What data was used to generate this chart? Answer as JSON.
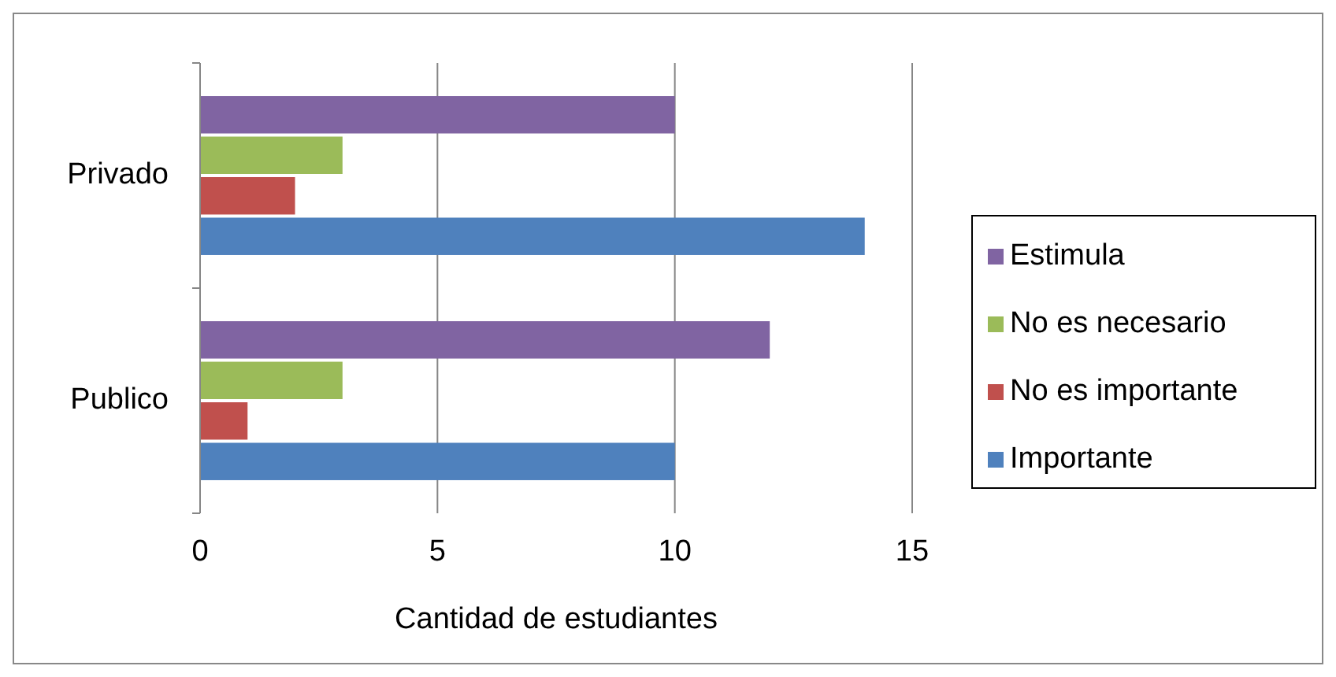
{
  "chart_data": {
    "type": "bar",
    "orientation": "horizontal",
    "categories": [
      "Privado",
      "Publico"
    ],
    "series": [
      {
        "name": "Importante",
        "color": "#4f81bd",
        "values": [
          14,
          10
        ]
      },
      {
        "name": "No es importante",
        "color": "#c0504d",
        "values": [
          2,
          1
        ]
      },
      {
        "name": "No es necesario",
        "color": "#9bbb59",
        "values": [
          3,
          3
        ]
      },
      {
        "name": "Estimula",
        "color": "#8064a2",
        "values": [
          10,
          12
        ]
      }
    ],
    "xlim": [
      0,
      15
    ],
    "xticks": [
      0,
      5,
      10,
      15
    ],
    "xlabel": "Cantidad de estudiantes",
    "grid": "x",
    "legend": "right"
  }
}
